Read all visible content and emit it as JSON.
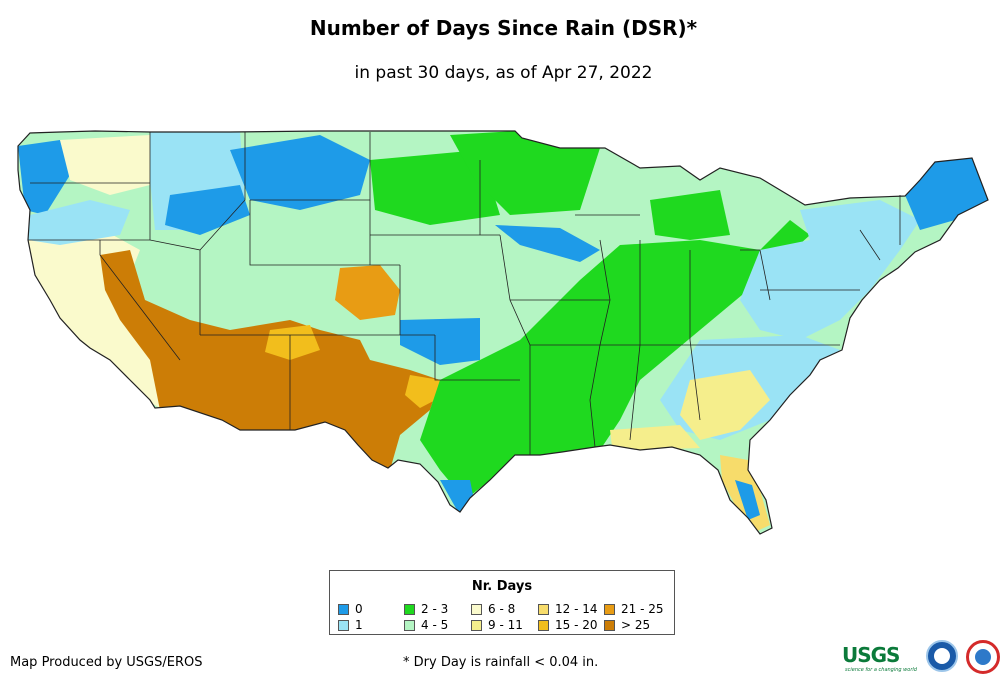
{
  "title": "Number of Days Since Rain (DSR)*",
  "subtitle": "in past 30 days, as of Apr 27, 2022",
  "legend": {
    "title": "Nr. Days",
    "items": [
      {
        "label": "0",
        "color": "#1e9be8"
      },
      {
        "label": "1",
        "color": "#9ae3f5"
      },
      {
        "label": "2 - 3",
        "color": "#1fd91f"
      },
      {
        "label": "4 - 5",
        "color": "#b4f5c3"
      },
      {
        "label": "6 - 8",
        "color": "#fafacc"
      },
      {
        "label": "9 - 11",
        "color": "#f5ee8c"
      },
      {
        "label": "12 - 14",
        "color": "#f7dc6b"
      },
      {
        "label": "15 - 20",
        "color": "#f2be1c"
      },
      {
        "label": "21 - 25",
        "color": "#e89c14"
      },
      {
        "label": "> 25",
        "color": "#cc7d06"
      }
    ]
  },
  "credit": "Map Produced by USGS/EROS",
  "footnote": "* Dry Day is rainfall < 0.04 in.",
  "logos": {
    "usgs": "USGS",
    "usgs_tagline": "science for a changing world"
  }
}
